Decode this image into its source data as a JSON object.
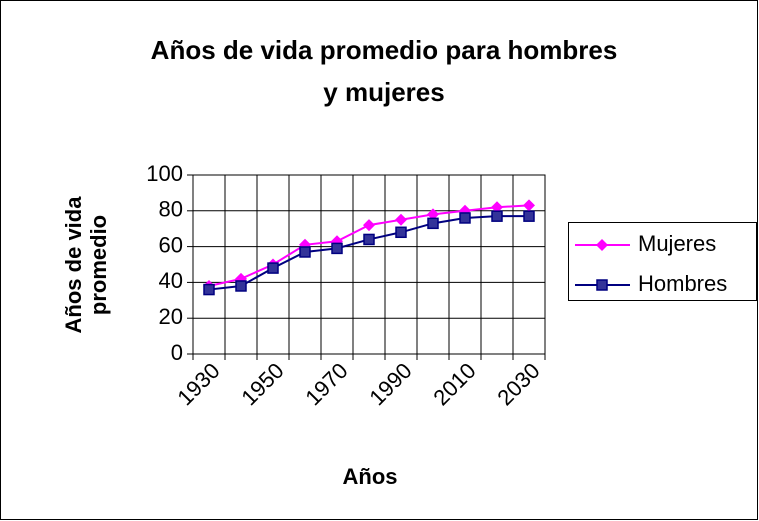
{
  "chart_data": {
    "type": "line",
    "title": [
      "Años de vida promedio para hombres",
      "y mujeres"
    ],
    "y_label": [
      "Años de vida",
      "promedio"
    ],
    "x_label": "Años",
    "categories": [
      "1930",
      null,
      "1950",
      null,
      "1970",
      null,
      "1990",
      null,
      "2010",
      null,
      "2030"
    ],
    "series": [
      {
        "name": "Mujeres",
        "color": "#ff00ff",
        "marker": "diamond",
        "values": [
          38,
          42,
          50,
          61,
          63,
          72,
          75,
          78,
          80,
          82,
          83
        ]
      },
      {
        "name": "Hombres",
        "color": "#000080",
        "marker": "square",
        "values": [
          36,
          38,
          48,
          57,
          59,
          64,
          68,
          73,
          76,
          77,
          77
        ]
      }
    ],
    "ylim": [
      0,
      100
    ],
    "yticks": [
      0,
      20,
      40,
      60,
      80,
      100
    ],
    "grid": true
  }
}
